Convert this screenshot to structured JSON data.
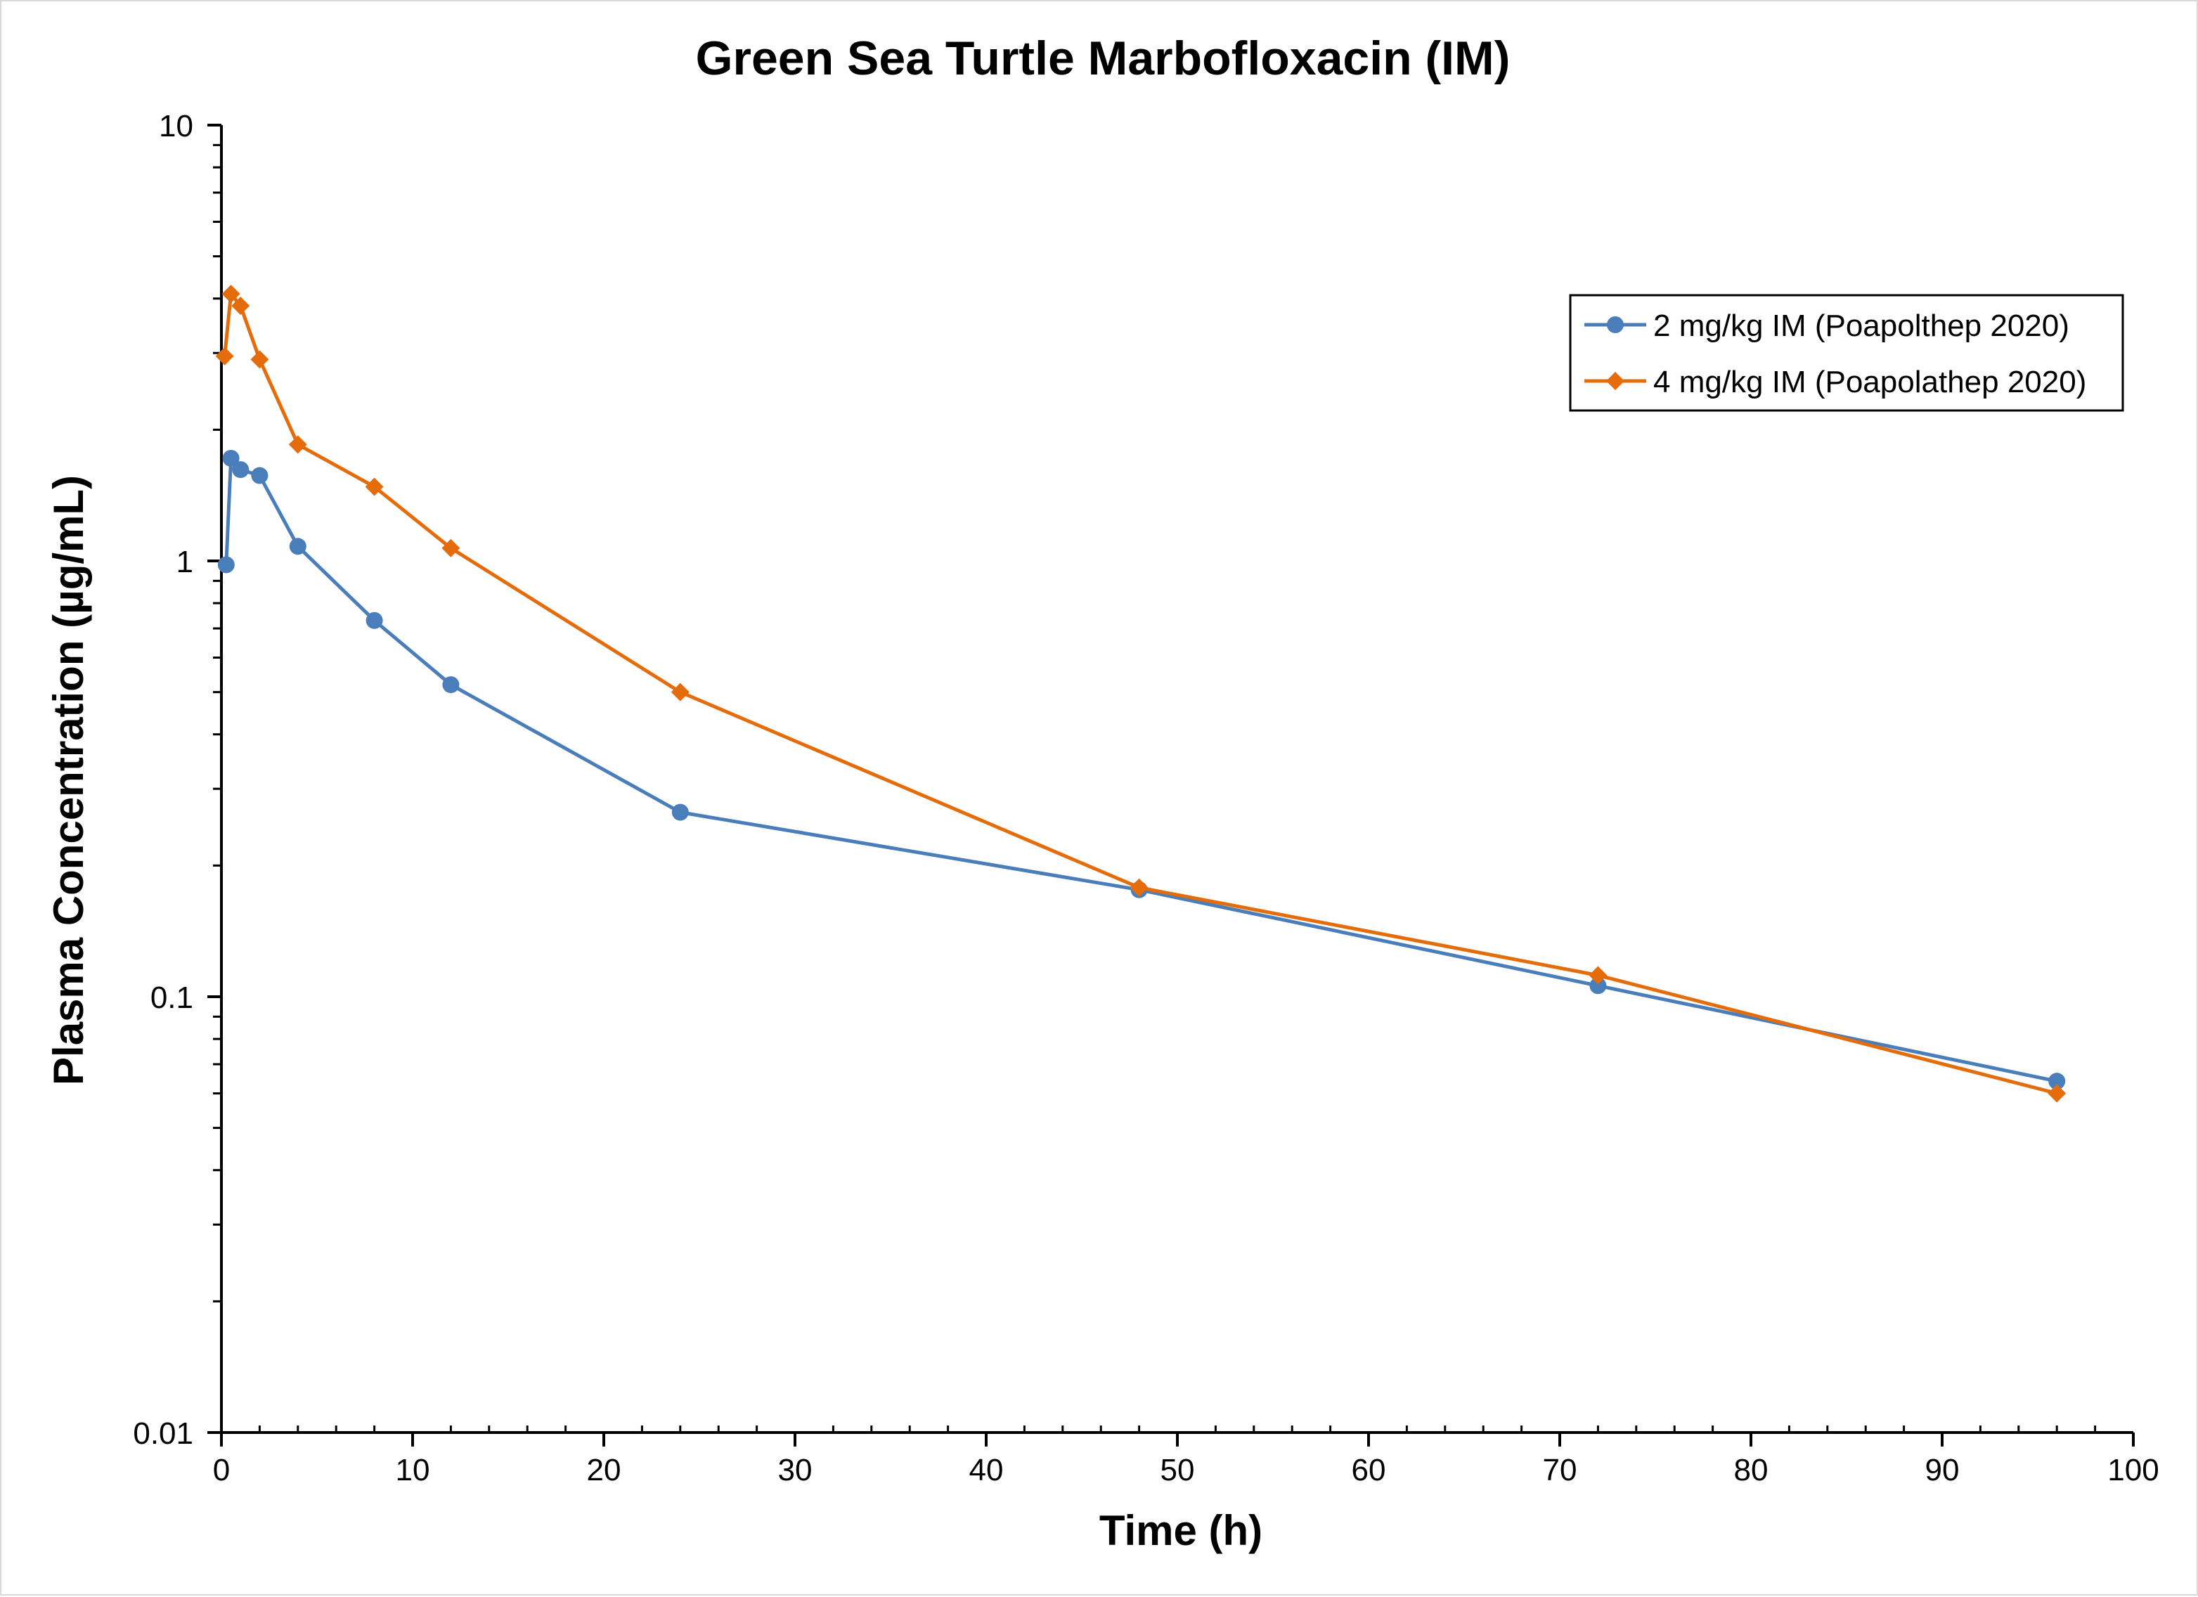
{
  "chart_data": {
    "type": "line",
    "title": "Green Sea Turtle Marbofloxacin (IM)",
    "xlabel": "Time (h)",
    "ylabel": "Plasma Concentration (µg/mL)",
    "xlim": [
      0,
      100
    ],
    "ylim": [
      0.01,
      10
    ],
    "yscale": "log",
    "x_ticks": [
      "0",
      "10",
      "20",
      "30",
      "40",
      "50",
      "60",
      "70",
      "80",
      "90",
      "100"
    ],
    "y_ticks": [
      "0.01",
      "0.1",
      "1",
      "10"
    ],
    "grid": false,
    "legend_position": "top-right",
    "series": [
      {
        "name": "2 mg/kg IM (Poapolthep 2020)",
        "color": "#4a7ebb",
        "marker": "circle",
        "x": [
          0.25,
          0.5,
          1,
          2,
          4,
          8,
          12,
          24,
          48,
          72,
          96
        ],
        "y": [
          0.98,
          1.72,
          1.62,
          1.57,
          1.08,
          0.73,
          0.52,
          0.265,
          0.176,
          0.106,
          0.064
        ]
      },
      {
        "name": "4 mg/kg IM (Poapolathep 2020)",
        "color": "#e46c0a",
        "marker": "diamond",
        "x": [
          0.17,
          0.5,
          1,
          2,
          4,
          8,
          12,
          24,
          48,
          72,
          96
        ],
        "y": [
          2.95,
          4.1,
          3.85,
          2.9,
          1.85,
          1.48,
          1.07,
          0.5,
          0.178,
          0.112,
          0.06
        ]
      }
    ]
  }
}
